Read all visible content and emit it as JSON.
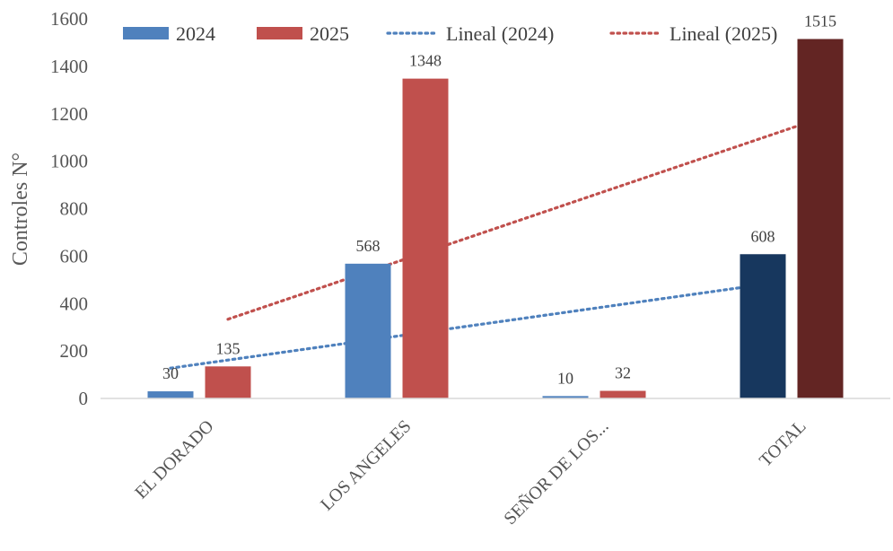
{
  "chart_data": {
    "type": "bar",
    "title": "",
    "xlabel": "",
    "ylabel": "Controles N°",
    "ylim": [
      0,
      1600
    ],
    "yticks": [
      0,
      200,
      400,
      600,
      800,
      1000,
      1200,
      1400,
      1600
    ],
    "categories": [
      "EL DORADO",
      "LOS ANGELES",
      "SEÑOR DE LOS...",
      "TOTAL"
    ],
    "series": [
      {
        "name": "2024",
        "values": [
          30,
          568,
          10,
          608
        ],
        "color": "#4f81bd",
        "point_colors": [
          "#4f81bd",
          "#4f81bd",
          "#4f81bd",
          "#17375e"
        ]
      },
      {
        "name": "2025",
        "values": [
          135,
          1348,
          32,
          1515
        ],
        "color": "#c0504d",
        "point_colors": [
          "#c0504d",
          "#c0504d",
          "#c0504d",
          "#632523"
        ]
      }
    ],
    "trendlines": [
      {
        "name": "Lineal (2024)",
        "series": "2024",
        "color": "#4f81bd"
      },
      {
        "name": "Lineal (2025)",
        "series": "2025",
        "color": "#c0504d"
      }
    ],
    "legend": "top",
    "grid": false
  }
}
